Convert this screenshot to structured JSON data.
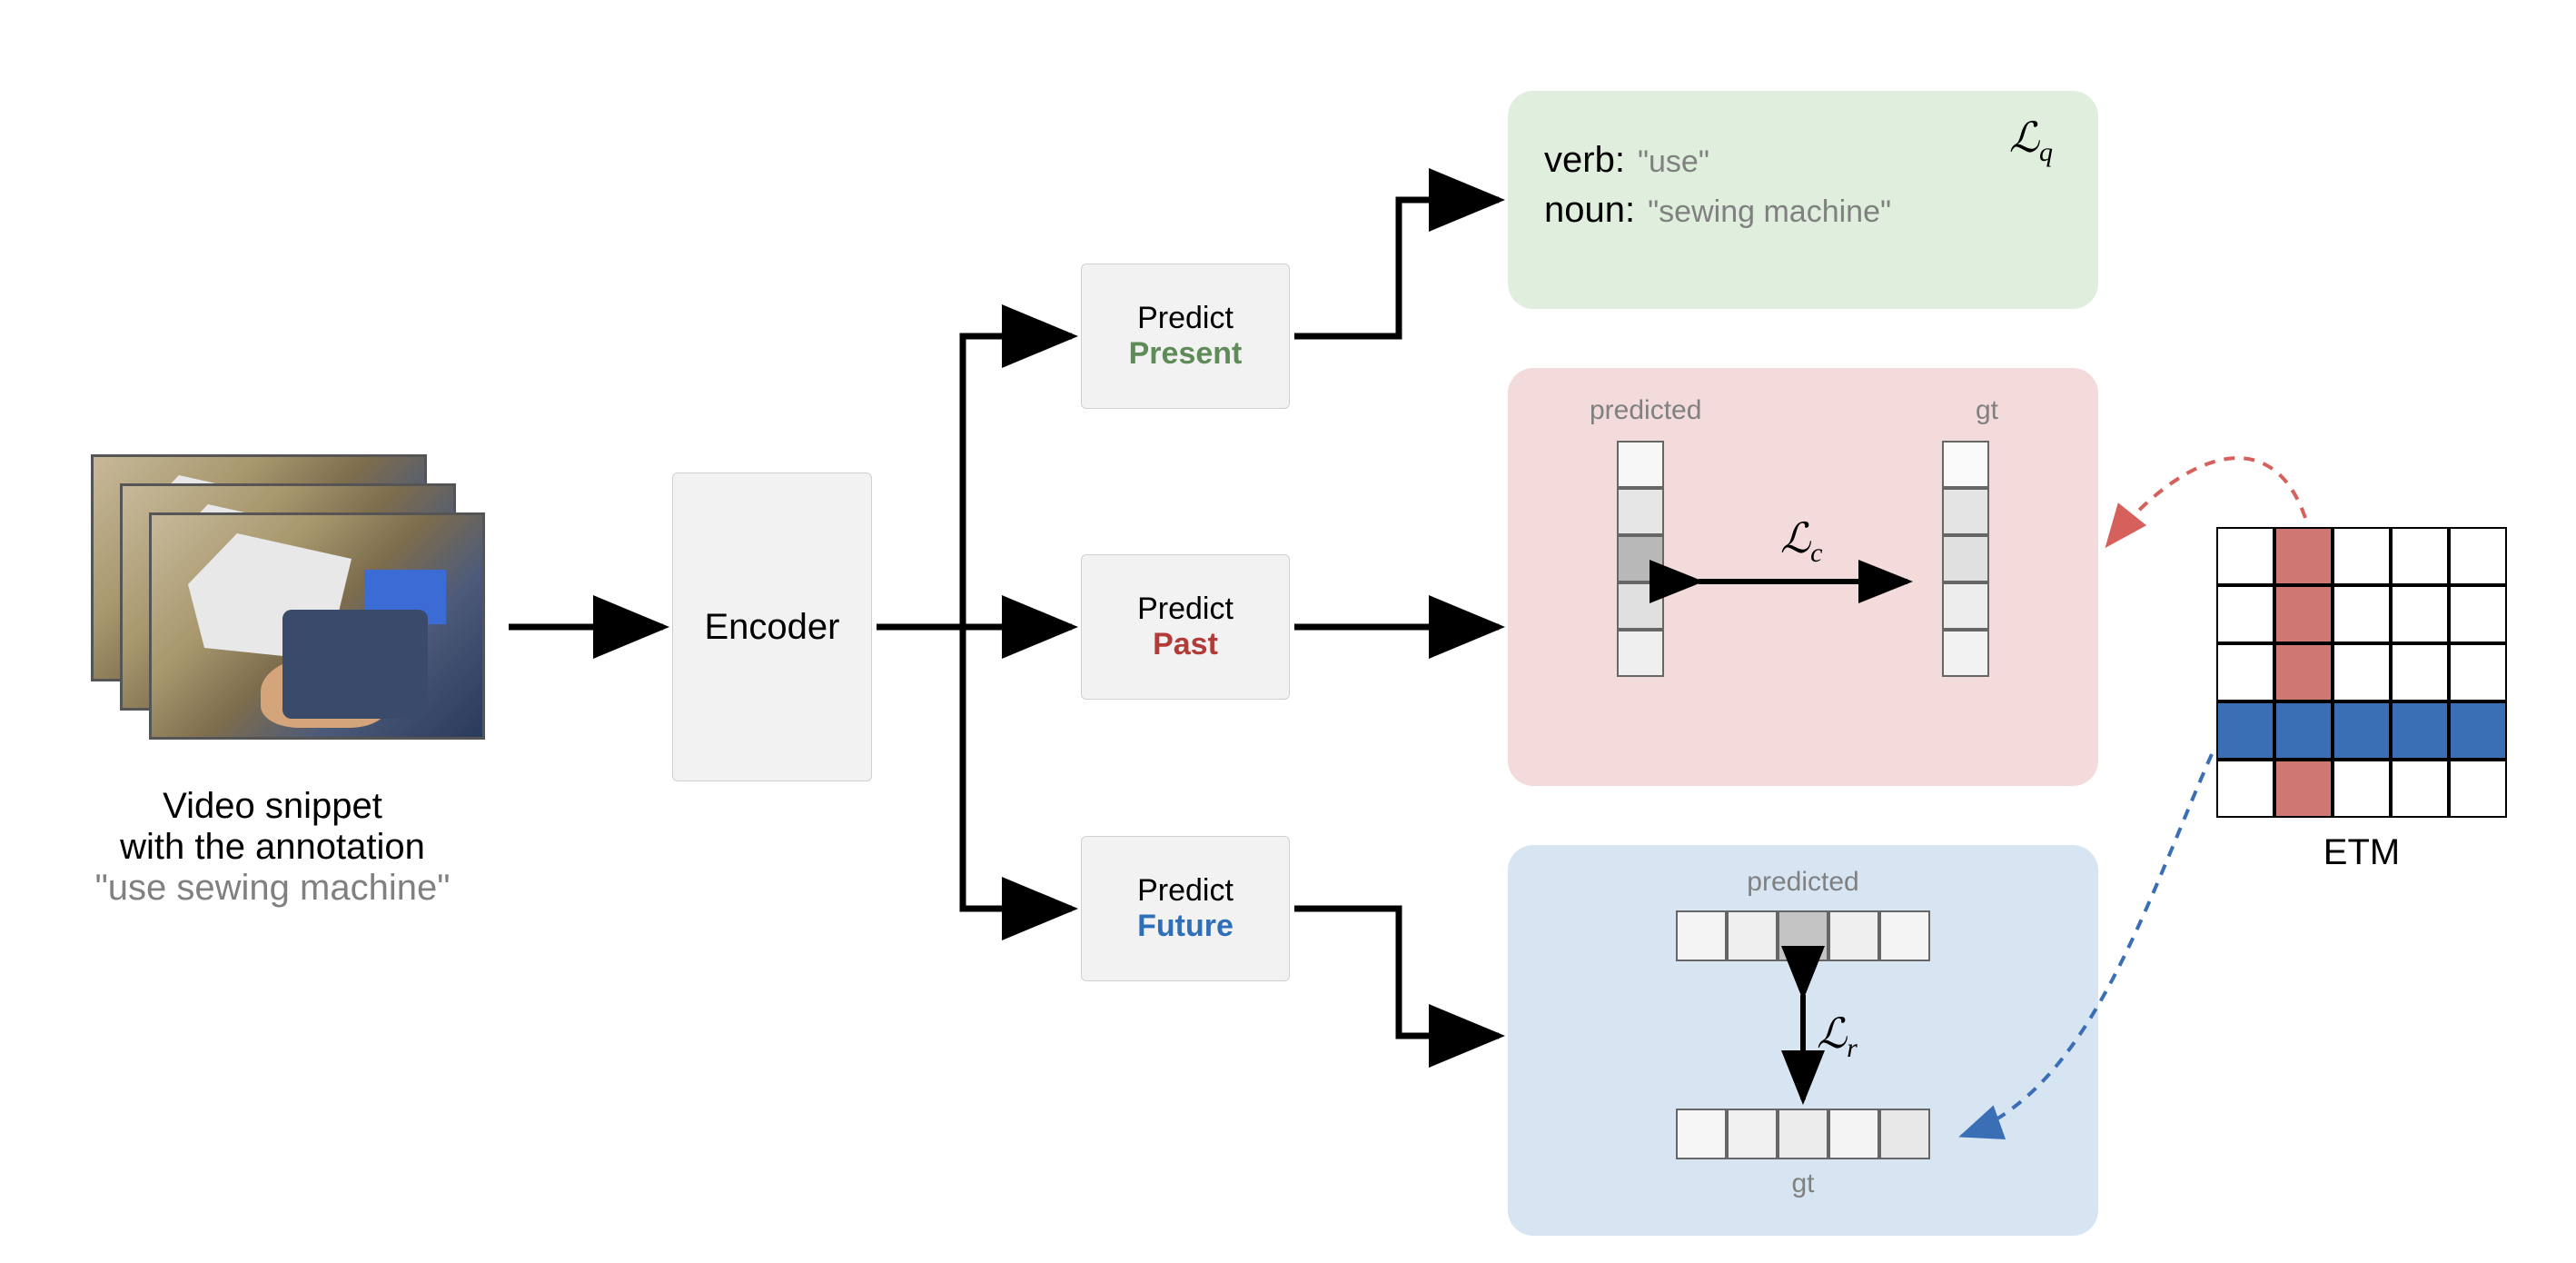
{
  "input": {
    "caption_line1": "Video snippet",
    "caption_line2": "with the annotation",
    "annotation": "\"use sewing machine\""
  },
  "encoder": {
    "label": "Encoder"
  },
  "heads": {
    "present": {
      "line1": "Predict",
      "line2": "Present",
      "color": "#5f8b58"
    },
    "past": {
      "line1": "Predict",
      "line2": "Past",
      "color": "#b23b38"
    },
    "future": {
      "line1": "Predict",
      "line2": "Future",
      "color": "#2f6fb7"
    }
  },
  "present_output": {
    "verb_key": "verb:",
    "verb_val": "\"use\"",
    "noun_key": "noun:",
    "noun_val": "\"sewing machine\"",
    "loss": "ℒ",
    "loss_sub": "q"
  },
  "past_output": {
    "predicted_label": "predicted",
    "gt_label": "gt",
    "loss": "ℒ",
    "loss_sub": "c",
    "predicted_shades": [
      "#f7f7f7",
      "#e6e6e6",
      "#b8b8b8",
      "#e0e0e0",
      "#efefef"
    ],
    "gt_shades": [
      "#fafafa",
      "#e4e4e4",
      "#e0e0e0",
      "#ededed",
      "#f2f2f2"
    ]
  },
  "future_output": {
    "predicted_label": "predicted",
    "gt_label": "gt",
    "loss": "ℒ",
    "loss_sub": "r",
    "predicted_shades": [
      "#f4f4f4",
      "#efefef",
      "#c4c4c4",
      "#efefef",
      "#f4f4f4"
    ],
    "gt_shades": [
      "#f6f6f6",
      "#f0f0f0",
      "#ececec",
      "#f4f4f4",
      "#e8e8e8"
    ]
  },
  "etm": {
    "label": "ETM",
    "highlight_col": {
      "index": 1,
      "color": "#cf7873"
    },
    "highlight_row": {
      "index": 3,
      "color": "#3a6fb5"
    }
  },
  "colors": {
    "arrow": "#000000",
    "dashed_red": "#d6605b",
    "dashed_blue": "#3a6fb5"
  }
}
